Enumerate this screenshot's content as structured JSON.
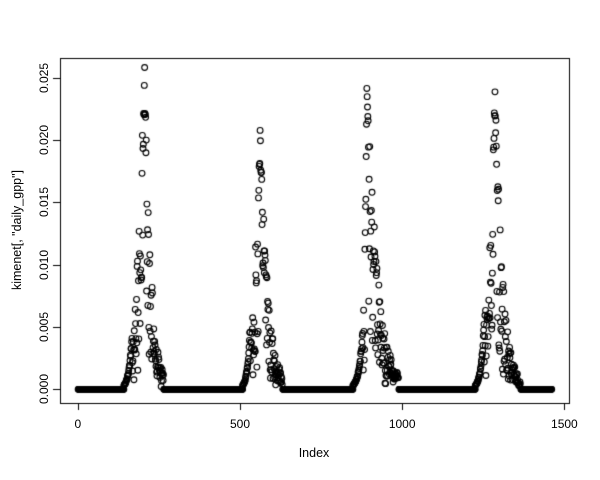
{
  "window": {
    "background": "#ffffff",
    "foreground": "#000000"
  },
  "chart_data": {
    "type": "scatter",
    "title": "",
    "xlabel": "Index",
    "ylabel": "kimenet[, \"daily_gpp\"]",
    "marker": "open-circle",
    "point_color": "#000000",
    "bg_color": "#ffffff",
    "grid": false,
    "legend": null,
    "x_ticks": [
      "0",
      "500",
      "1000",
      "1500"
    ],
    "x_tick_values": [
      0,
      500,
      1000,
      1500
    ],
    "y_ticks": [
      "0.000",
      "0.005",
      "0.010",
      "0.015",
      "0.020",
      "0.025"
    ],
    "y_tick_values": [
      0,
      0.005,
      0.01,
      0.015,
      0.02,
      0.025
    ],
    "xlim": [
      -54.9,
      1514.2
    ],
    "ylim": [
      -0.001097,
      0.02658
    ],
    "n_points": 1461,
    "series": [
      {
        "name": "daily_gpp",
        "noise_seed": 42,
        "zero_value": 0.0,
        "zero_runs": [
          [
            1,
            142
          ],
          [
            265,
            508
          ],
          [
            632,
            848
          ],
          [
            990,
            1225
          ],
          [
            1366,
            1461
          ]
        ],
        "seasons": [
          {
            "ramp_start": 142,
            "scatter_start": 168,
            "peak_x": 206,
            "end": 264,
            "max": 0.0256,
            "ramp_top": 0.005,
            "end_val": 0.0012
          },
          {
            "ramp_start": 508,
            "scatter_start": 531,
            "peak_x": 562,
            "end": 630,
            "max": 0.0205,
            "ramp_top": 0.005,
            "end_val": 0.0012
          },
          {
            "ramp_start": 848,
            "scatter_start": 879,
            "peak_x": 891,
            "end": 988,
            "max": 0.0252,
            "ramp_top": 0.005,
            "end_val": 0.0012
          },
          {
            "ramp_start": 1225,
            "scatter_start": 1252,
            "peak_x": 1286,
            "end": 1364,
            "max": 0.0246,
            "ramp_top": 0.005,
            "end_val": 0.0008
          }
        ]
      }
    ]
  }
}
